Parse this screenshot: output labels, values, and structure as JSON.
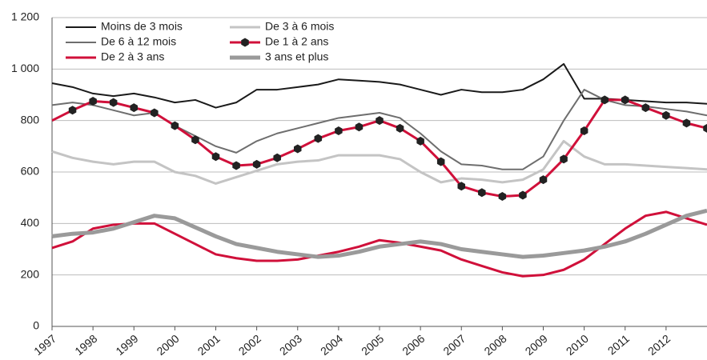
{
  "chart_data": {
    "type": "line",
    "x": [
      1997,
      1997.5,
      1998,
      1998.5,
      1999,
      1999.5,
      2000,
      2000.5,
      2001,
      2001.5,
      2002,
      2002.5,
      2003,
      2003.5,
      2004,
      2004.5,
      2005,
      2005.5,
      2006,
      2006.5,
      2007,
      2007.5,
      2008,
      2008.5,
      2009,
      2009.5,
      2010,
      2010.5,
      2011,
      2011.5,
      2012,
      2012.5,
      2013
    ],
    "xlim": [
      1997,
      2013
    ],
    "xticks": [
      1997,
      1998,
      1999,
      2000,
      2001,
      2002,
      2003,
      2004,
      2005,
      2006,
      2007,
      2008,
      2009,
      2010,
      2011,
      2012
    ],
    "ylim": [
      0,
      1200
    ],
    "yticks": [
      0,
      200,
      400,
      600,
      800,
      {
        "value": 1000,
        "label": "1 000"
      },
      {
        "value": 1200,
        "label": "1 200"
      }
    ],
    "grid": true,
    "series": [
      {
        "name": "Moins de 3 mois",
        "color": "#1a1a1a",
        "values": [
          945,
          930,
          905,
          895,
          905,
          890,
          870,
          880,
          850,
          870,
          920,
          920,
          930,
          940,
          960,
          955,
          950,
          940,
          920,
          900,
          920,
          910,
          910,
          920,
          960,
          1020,
          885,
          885,
          880,
          875,
          870,
          870,
          865
        ]
      },
      {
        "name": "De 3 à 6 mois",
        "color": "#c4c4c4",
        "values": [
          680,
          655,
          640,
          630,
          640,
          640,
          600,
          585,
          555,
          580,
          605,
          630,
          640,
          645,
          665,
          665,
          665,
          650,
          600,
          560,
          575,
          570,
          560,
          570,
          610,
          720,
          660,
          630,
          630,
          625,
          620,
          615,
          610
        ]
      },
      {
        "name": "De 6 à 12 mois",
        "color": "#6e6e6e",
        "values": [
          860,
          870,
          860,
          840,
          820,
          830,
          780,
          740,
          700,
          675,
          720,
          750,
          770,
          790,
          810,
          820,
          830,
          810,
          750,
          680,
          630,
          625,
          610,
          610,
          660,
          800,
          920,
          880,
          860,
          855,
          845,
          835,
          820
        ]
      },
      {
        "name": "De 1 à 2 ans",
        "color": "#d0103a",
        "marker": "hexagon",
        "values": [
          800,
          840,
          875,
          870,
          850,
          830,
          780,
          725,
          660,
          625,
          630,
          655,
          690,
          730,
          760,
          775,
          800,
          770,
          720,
          640,
          545,
          520,
          505,
          510,
          570,
          650,
          760,
          880,
          880,
          850,
          820,
          790,
          770
        ]
      },
      {
        "name": "De 2 à 3 ans",
        "color": "#d0103a",
        "values": [
          305,
          330,
          380,
          395,
          400,
          400,
          360,
          320,
          280,
          265,
          255,
          255,
          260,
          275,
          290,
          310,
          335,
          325,
          310,
          295,
          260,
          235,
          210,
          195,
          200,
          220,
          260,
          320,
          380,
          430,
          445,
          420,
          395
        ]
      },
      {
        "name": "3 ans et plus",
        "color": "#9a9a9a",
        "values": [
          350,
          360,
          365,
          380,
          405,
          430,
          420,
          385,
          350,
          320,
          305,
          290,
          280,
          270,
          275,
          290,
          310,
          320,
          330,
          320,
          300,
          290,
          280,
          270,
          275,
          285,
          295,
          310,
          330,
          360,
          395,
          430,
          450
        ]
      }
    ]
  }
}
